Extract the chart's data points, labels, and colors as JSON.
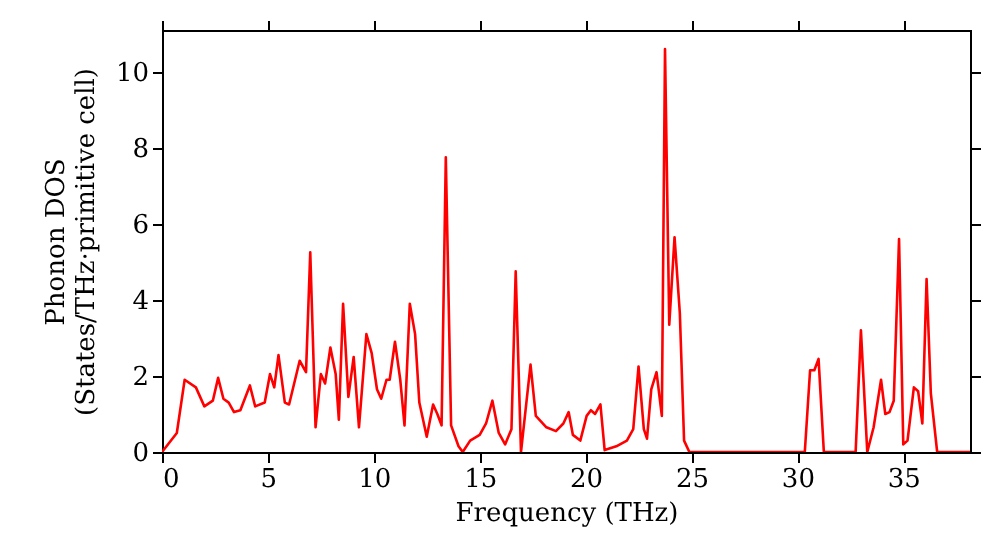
{
  "chart_data": {
    "type": "line",
    "xlabel": "Frequency (THz)",
    "ylabel": "Phonon DOS\n(States/THz·primitive cell)",
    "xlim": [
      0,
      38.15
    ],
    "ylim": [
      0,
      11.1
    ],
    "xticks": [
      0,
      5,
      10,
      15,
      20,
      25,
      30,
      35
    ],
    "yticks": [
      0,
      2,
      4,
      6,
      8,
      10
    ],
    "grid": false,
    "marker": "none",
    "line_style": "solid",
    "series": [
      {
        "color": "#ff0000",
        "x": [
          0,
          0.7,
          1.07,
          1.6,
          2.0,
          2.4,
          2.65,
          2.9,
          3.15,
          3.4,
          3.7,
          4.15,
          4.4,
          4.85,
          5.1,
          5.3,
          5.5,
          5.8,
          6.0,
          6.5,
          6.8,
          7.0,
          7.25,
          7.5,
          7.7,
          7.95,
          8.2,
          8.35,
          8.55,
          8.8,
          9.05,
          9.3,
          9.65,
          9.9,
          10.15,
          10.35,
          10.6,
          10.75,
          11.0,
          11.25,
          11.45,
          11.7,
          11.95,
          12.15,
          12.5,
          12.8,
          13.0,
          13.2,
          13.4,
          13.65,
          14.0,
          14.2,
          14.55,
          15.0,
          15.3,
          15.6,
          15.9,
          16.2,
          16.5,
          16.7,
          16.95,
          17.4,
          17.65,
          18.15,
          18.6,
          18.95,
          19.2,
          19.4,
          19.75,
          20.05,
          20.25,
          20.45,
          20.7,
          20.9,
          21.45,
          21.95,
          22.25,
          22.5,
          22.75,
          22.9,
          23.1,
          23.35,
          23.6,
          23.75,
          23.95,
          24.2,
          24.45,
          24.65,
          24.9,
          30.35,
          30.6,
          30.8,
          31.0,
          31.25,
          32.75,
          33.0,
          33.3,
          33.6,
          33.95,
          34.15,
          34.35,
          34.55,
          34.8,
          35.0,
          35.2,
          35.5,
          35.7,
          35.9,
          36.1,
          36.3,
          36.6,
          38.15
        ],
        "values": [
          0,
          0.5,
          1.9,
          1.7,
          1.2,
          1.35,
          1.95,
          1.4,
          1.3,
          1.05,
          1.1,
          1.75,
          1.2,
          1.3,
          2.05,
          1.7,
          2.55,
          1.3,
          1.25,
          2.4,
          2.1,
          5.25,
          0.65,
          2.05,
          1.8,
          2.75,
          2.05,
          0.85,
          3.9,
          1.45,
          2.5,
          0.65,
          3.1,
          2.6,
          1.65,
          1.4,
          1.9,
          1.9,
          2.9,
          1.9,
          0.7,
          3.9,
          3.1,
          1.3,
          0.4,
          1.25,
          1.0,
          0.7,
          7.75,
          0.7,
          0.15,
          0,
          0.3,
          0.45,
          0.75,
          1.35,
          0.5,
          0.2,
          0.6,
          4.75,
          0,
          2.3,
          0.95,
          0.65,
          0.55,
          0.75,
          1.05,
          0.45,
          0.3,
          0.95,
          1.1,
          1.0,
          1.25,
          0.05,
          0.15,
          0.3,
          0.6,
          2.25,
          0.6,
          0.35,
          1.65,
          2.1,
          0.95,
          10.6,
          3.35,
          5.65,
          3.65,
          0.3,
          0,
          0,
          2.15,
          2.15,
          2.45,
          0,
          0,
          3.2,
          0,
          0.65,
          1.9,
          1.0,
          1.05,
          1.35,
          5.6,
          0.2,
          0.3,
          1.7,
          1.6,
          0.75,
          4.55,
          1.55,
          0,
          0
        ]
      }
    ]
  }
}
